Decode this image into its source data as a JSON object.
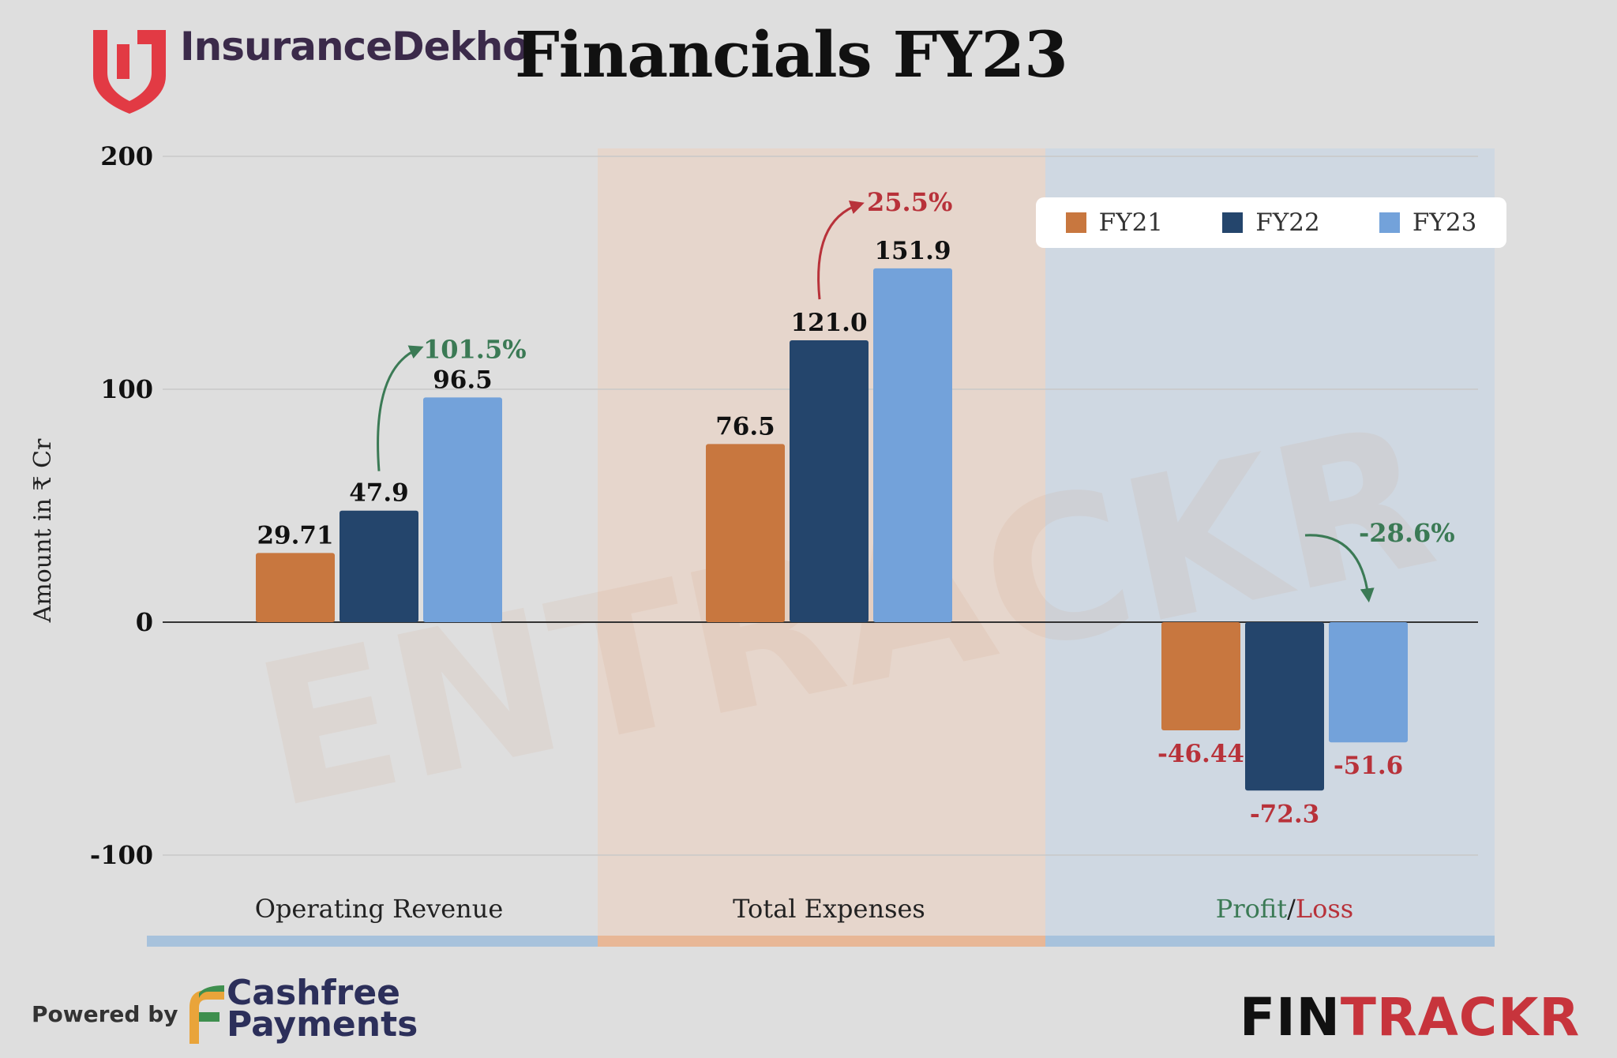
{
  "header": {
    "brand_name": "InsuranceDekho",
    "title": "Financials FY23",
    "logo_icon": "insurancedekho-shield-icon"
  },
  "colors": {
    "fy21": "#c8773f",
    "fy22": "#24456c",
    "fy23": "#73a2da",
    "green": "#3b7a55",
    "red": "#b8323a",
    "band_revenue": "#a7c2dc",
    "band_expenses": "#e8b796",
    "band_profit": "#a7c2dc"
  },
  "legend": {
    "items": [
      {
        "label": "FY21",
        "color": "#c8773f"
      },
      {
        "label": "FY22",
        "color": "#24456c"
      },
      {
        "label": "FY23",
        "color": "#73a2da"
      }
    ]
  },
  "chart_data": {
    "type": "bar",
    "categories": [
      "Operating Revenue",
      "Total Expenses",
      "Profit/Loss"
    ],
    "series": [
      {
        "name": "FY21",
        "values": [
          29.71,
          76.5,
          -46.44
        ],
        "labels": [
          "29.71",
          "76.5",
          "-46.44"
        ]
      },
      {
        "name": "FY22",
        "values": [
          47.9,
          121.0,
          -72.3
        ],
        "labels": [
          "47.9",
          "121.0",
          "-72.3"
        ]
      },
      {
        "name": "FY23",
        "values": [
          96.5,
          151.9,
          -51.6
        ],
        "labels": [
          "96.5",
          "151.9",
          "-51.6"
        ]
      }
    ],
    "ylabel": "Amount in ₹ Cr",
    "xlabel": "",
    "ylim": [
      -100,
      200
    ],
    "yticks": [
      -100,
      0,
      100,
      200
    ],
    "grid": true,
    "legend_position": "top-right",
    "growth": [
      {
        "category": "Operating Revenue",
        "label": "101.5%",
        "color": "green"
      },
      {
        "category": "Total Expenses",
        "label": "25.5%",
        "color": "red"
      },
      {
        "category": "Profit/Loss",
        "label": "-28.6%",
        "color": "green"
      }
    ],
    "profit_loss_label": {
      "profit": "Profit",
      "separator": "/",
      "loss": "Loss"
    }
  },
  "watermark": {
    "text": "ENTRACKR"
  },
  "footer": {
    "powered_by": "Powered by",
    "cashfree_line1": "Cashfree",
    "cashfree_line2": "Payments",
    "fintrackr_part1": "FIN",
    "fintrackr_part2": "TRACKR"
  }
}
